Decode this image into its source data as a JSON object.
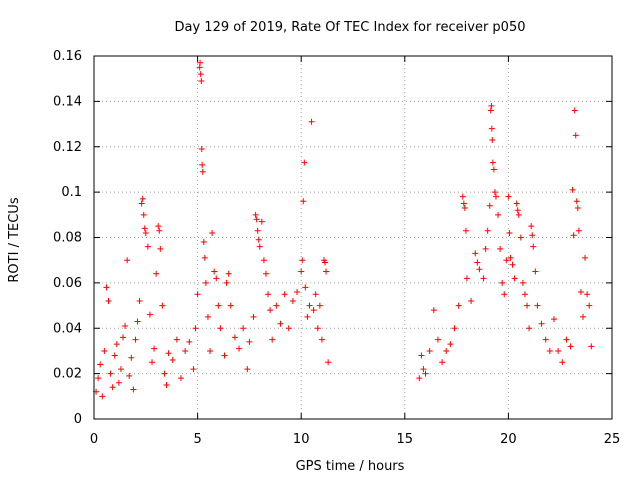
{
  "chart_data": {
    "type": "scatter",
    "title": "Day 129 of 2019, Rate Of TEC Index for receiver p050",
    "xlabel": "GPS time / hours",
    "ylabel": "ROTI / TECUs",
    "xlim": [
      0,
      25
    ],
    "ylim": [
      0,
      0.16
    ],
    "xticks": [
      0,
      5,
      10,
      15,
      20,
      25
    ],
    "xtick_labels": [
      "0",
      "5",
      "10",
      "15",
      "20",
      "25"
    ],
    "yticks": [
      0,
      0.02,
      0.04,
      0.06,
      0.08,
      0.1,
      0.12,
      0.14,
      0.16
    ],
    "ytick_labels": [
      "0",
      "0.02",
      "0.04",
      "0.06",
      "0.08",
      "0.1",
      "0.12",
      "0.14",
      "0.16"
    ],
    "grid": true,
    "marker": "+",
    "color": "#ff0000",
    "series": [
      {
        "name": "ROTI",
        "points": [
          [
            0.1,
            0.012
          ],
          [
            0.2,
            0.018
          ],
          [
            0.3,
            0.024
          ],
          [
            0.4,
            0.01
          ],
          [
            0.5,
            0.03
          ],
          [
            0.6,
            0.058
          ],
          [
            0.7,
            0.052
          ],
          [
            0.8,
            0.02
          ],
          [
            0.9,
            0.014
          ],
          [
            1.0,
            0.028
          ],
          [
            1.1,
            0.033
          ],
          [
            1.2,
            0.016
          ],
          [
            1.3,
            0.022
          ],
          [
            1.4,
            0.036
          ],
          [
            1.5,
            0.041
          ],
          [
            1.6,
            0.07
          ],
          [
            1.7,
            0.019
          ],
          [
            1.8,
            0.027
          ],
          [
            1.9,
            0.013
          ],
          [
            2.0,
            0.035
          ],
          [
            2.1,
            0.043
          ],
          [
            2.2,
            0.052
          ],
          [
            2.3,
            0.095
          ],
          [
            2.35,
            0.097
          ],
          [
            2.4,
            0.09
          ],
          [
            2.45,
            0.084
          ],
          [
            2.5,
            0.082
          ],
          [
            2.6,
            0.076
          ],
          [
            2.7,
            0.046
          ],
          [
            2.8,
            0.025
          ],
          [
            2.9,
            0.031
          ],
          [
            3.0,
            0.064
          ],
          [
            3.1,
            0.085
          ],
          [
            3.15,
            0.083
          ],
          [
            3.2,
            0.075
          ],
          [
            3.3,
            0.05
          ],
          [
            3.4,
            0.02
          ],
          [
            3.5,
            0.015
          ],
          [
            3.6,
            0.029
          ],
          [
            3.8,
            0.026
          ],
          [
            4.0,
            0.035
          ],
          [
            4.2,
            0.018
          ],
          [
            4.4,
            0.03
          ],
          [
            4.6,
            0.034
          ],
          [
            4.8,
            0.022
          ],
          [
            4.9,
            0.04
          ],
          [
            5.0,
            0.055
          ],
          [
            5.1,
            0.155
          ],
          [
            5.12,
            0.157
          ],
          [
            5.15,
            0.152
          ],
          [
            5.18,
            0.149
          ],
          [
            5.2,
            0.119
          ],
          [
            5.22,
            0.112
          ],
          [
            5.25,
            0.109
          ],
          [
            5.3,
            0.078
          ],
          [
            5.35,
            0.071
          ],
          [
            5.4,
            0.06
          ],
          [
            5.5,
            0.045
          ],
          [
            5.6,
            0.03
          ],
          [
            5.7,
            0.082
          ],
          [
            5.8,
            0.065
          ],
          [
            5.9,
            0.062
          ],
          [
            6.0,
            0.05
          ],
          [
            6.1,
            0.04
          ],
          [
            6.3,
            0.028
          ],
          [
            6.4,
            0.06
          ],
          [
            6.5,
            0.064
          ],
          [
            6.6,
            0.05
          ],
          [
            6.8,
            0.036
          ],
          [
            7.0,
            0.031
          ],
          [
            7.2,
            0.04
          ],
          [
            7.4,
            0.022
          ],
          [
            7.5,
            0.034
          ],
          [
            7.7,
            0.045
          ],
          [
            7.8,
            0.09
          ],
          [
            7.85,
            0.088
          ],
          [
            7.9,
            0.083
          ],
          [
            7.95,
            0.079
          ],
          [
            8.0,
            0.076
          ],
          [
            8.1,
            0.087
          ],
          [
            8.2,
            0.07
          ],
          [
            8.3,
            0.064
          ],
          [
            8.4,
            0.055
          ],
          [
            8.5,
            0.048
          ],
          [
            8.6,
            0.035
          ],
          [
            8.8,
            0.05
          ],
          [
            9.0,
            0.042
          ],
          [
            9.2,
            0.055
          ],
          [
            9.4,
            0.04
          ],
          [
            9.6,
            0.052
          ],
          [
            9.8,
            0.056
          ],
          [
            10.0,
            0.065
          ],
          [
            10.05,
            0.07
          ],
          [
            10.1,
            0.096
          ],
          [
            10.15,
            0.113
          ],
          [
            10.2,
            0.058
          ],
          [
            10.3,
            0.045
          ],
          [
            10.4,
            0.05
          ],
          [
            10.5,
            0.131
          ],
          [
            10.6,
            0.048
          ],
          [
            10.7,
            0.055
          ],
          [
            10.8,
            0.04
          ],
          [
            10.9,
            0.05
          ],
          [
            11.0,
            0.035
          ],
          [
            11.1,
            0.07
          ],
          [
            11.15,
            0.069
          ],
          [
            11.2,
            0.065
          ],
          [
            11.3,
            0.025
          ],
          [
            15.7,
            0.018
          ],
          [
            15.8,
            0.028
          ],
          [
            15.9,
            0.022
          ],
          [
            16.0,
            0.02
          ],
          [
            16.2,
            0.03
          ],
          [
            16.4,
            0.048
          ],
          [
            16.6,
            0.035
          ],
          [
            16.8,
            0.025
          ],
          [
            17.0,
            0.03
          ],
          [
            17.2,
            0.033
          ],
          [
            17.4,
            0.04
          ],
          [
            17.6,
            0.05
          ],
          [
            17.8,
            0.098
          ],
          [
            17.85,
            0.095
          ],
          [
            17.9,
            0.093
          ],
          [
            17.95,
            0.083
          ],
          [
            18.0,
            0.062
          ],
          [
            18.2,
            0.052
          ],
          [
            18.4,
            0.073
          ],
          [
            18.5,
            0.069
          ],
          [
            18.6,
            0.066
          ],
          [
            18.8,
            0.062
          ],
          [
            18.9,
            0.075
          ],
          [
            19.0,
            0.083
          ],
          [
            19.1,
            0.094
          ],
          [
            19.15,
            0.136
          ],
          [
            19.18,
            0.138
          ],
          [
            19.2,
            0.128
          ],
          [
            19.22,
            0.123
          ],
          [
            19.25,
            0.113
          ],
          [
            19.3,
            0.11
          ],
          [
            19.35,
            0.1
          ],
          [
            19.4,
            0.098
          ],
          [
            19.5,
            0.09
          ],
          [
            19.6,
            0.075
          ],
          [
            19.7,
            0.06
          ],
          [
            19.8,
            0.055
          ],
          [
            19.9,
            0.07
          ],
          [
            20.0,
            0.098
          ],
          [
            20.05,
            0.082
          ],
          [
            20.1,
            0.071
          ],
          [
            20.2,
            0.068
          ],
          [
            20.3,
            0.062
          ],
          [
            20.4,
            0.095
          ],
          [
            20.45,
            0.092
          ],
          [
            20.5,
            0.09
          ],
          [
            20.6,
            0.08
          ],
          [
            20.7,
            0.06
          ],
          [
            20.8,
            0.055
          ],
          [
            20.9,
            0.05
          ],
          [
            21.0,
            0.04
          ],
          [
            21.1,
            0.085
          ],
          [
            21.15,
            0.081
          ],
          [
            21.2,
            0.076
          ],
          [
            21.3,
            0.065
          ],
          [
            21.4,
            0.05
          ],
          [
            21.6,
            0.042
          ],
          [
            21.8,
            0.035
          ],
          [
            22.0,
            0.03
          ],
          [
            22.2,
            0.044
          ],
          [
            22.4,
            0.03
          ],
          [
            22.6,
            0.025
          ],
          [
            22.8,
            0.035
          ],
          [
            23.0,
            0.032
          ],
          [
            23.1,
            0.101
          ],
          [
            23.15,
            0.081
          ],
          [
            23.2,
            0.136
          ],
          [
            23.25,
            0.125
          ],
          [
            23.3,
            0.096
          ],
          [
            23.35,
            0.093
          ],
          [
            23.4,
            0.083
          ],
          [
            23.5,
            0.056
          ],
          [
            23.6,
            0.045
          ],
          [
            23.7,
            0.071
          ],
          [
            23.8,
            0.055
          ],
          [
            23.9,
            0.05
          ],
          [
            24.0,
            0.032
          ]
        ]
      }
    ]
  }
}
